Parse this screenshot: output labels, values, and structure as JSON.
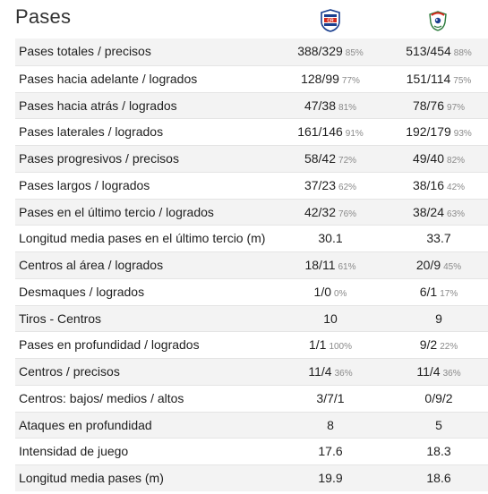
{
  "title": "Pases",
  "teams": {
    "home": {
      "logo": "costa-rica-crest-icon",
      "color": "#1a3f8f",
      "accent": "#d52b1e"
    },
    "away": {
      "logo": "panama-crest-icon",
      "color": "#2a7a3b",
      "accent": "#d52b1e"
    }
  },
  "rows": [
    {
      "label": "Pases totales / precisos",
      "home": "388/329",
      "home_pct": "85%",
      "away": "513/454",
      "away_pct": "88%"
    },
    {
      "label": "Pases hacia adelante / logrados",
      "home": "128/99",
      "home_pct": "77%",
      "away": "151/114",
      "away_pct": "75%"
    },
    {
      "label": "Pases hacia atrás / logrados",
      "home": "47/38",
      "home_pct": "81%",
      "away": "78/76",
      "away_pct": "97%"
    },
    {
      "label": "Pases laterales / logrados",
      "home": "161/146",
      "home_pct": "91%",
      "away": "192/179",
      "away_pct": "93%"
    },
    {
      "label": "Pases progresivos / precisos",
      "home": "58/42",
      "home_pct": "72%",
      "away": "49/40",
      "away_pct": "82%"
    },
    {
      "label": "Pases largos / logrados",
      "home": "37/23",
      "home_pct": "62%",
      "away": "38/16",
      "away_pct": "42%"
    },
    {
      "label": "Pases en el último tercio / logrados",
      "home": "42/32",
      "home_pct": "76%",
      "away": "38/24",
      "away_pct": "63%"
    },
    {
      "label": "Longitud media pases en el último tercio (m)",
      "home": "30.1",
      "home_pct": "",
      "away": "33.7",
      "away_pct": ""
    },
    {
      "label": "Centros al área / logrados",
      "home": "18/11",
      "home_pct": "61%",
      "away": "20/9",
      "away_pct": "45%"
    },
    {
      "label": "Desmaques / logrados",
      "home": "1/0",
      "home_pct": "0%",
      "away": "6/1",
      "away_pct": "17%"
    },
    {
      "label": "Tiros - Centros",
      "home": "10",
      "home_pct": "",
      "away": "9",
      "away_pct": ""
    },
    {
      "label": "Pases en profundidad / logrados",
      "home": "1/1",
      "home_pct": "100%",
      "away": "9/2",
      "away_pct": "22%"
    },
    {
      "label": "Centros / precisos",
      "home": "11/4",
      "home_pct": "36%",
      "away": "11/4",
      "away_pct": "36%"
    },
    {
      "label": "Centros: bajos/ medios / altos",
      "home": "3/7/1",
      "home_pct": "",
      "away": "0/9/2",
      "away_pct": ""
    },
    {
      "label": "Ataques en profundidad",
      "home": "8",
      "home_pct": "",
      "away": "5",
      "away_pct": ""
    },
    {
      "label": "Intensidad de juego",
      "home": "17.6",
      "home_pct": "",
      "away": "18.3",
      "away_pct": ""
    },
    {
      "label": "Longitud media pases (m)",
      "home": "19.9",
      "home_pct": "",
      "away": "18.6",
      "away_pct": ""
    }
  ]
}
